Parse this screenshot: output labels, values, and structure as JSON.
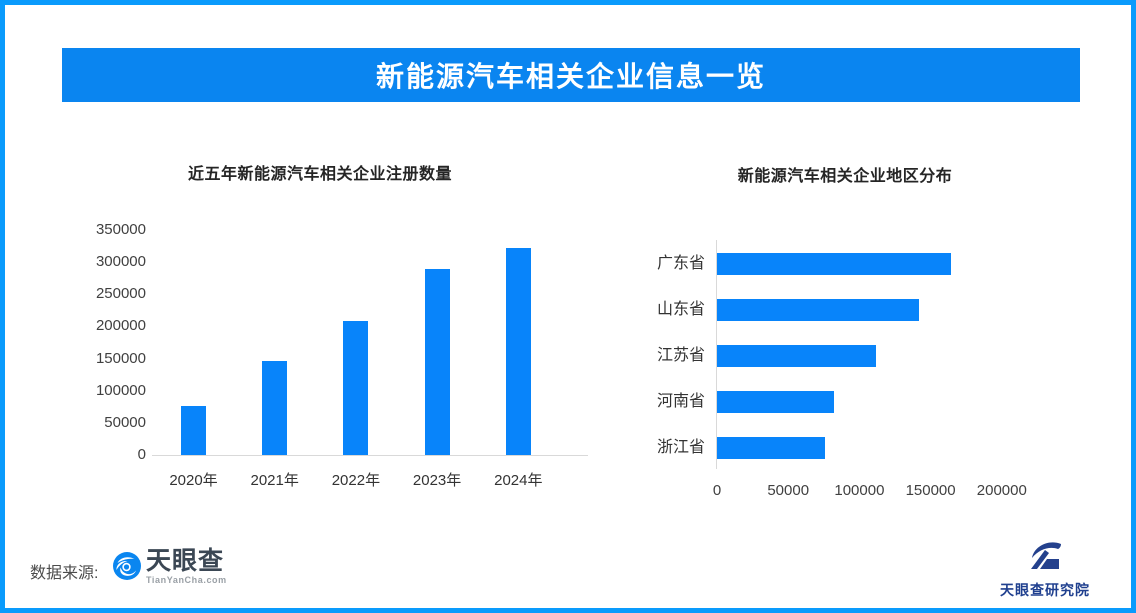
{
  "banner": {
    "title": "新能源汽车相关企业信息一览"
  },
  "footer": {
    "source_label": "数据来源:",
    "logo_text": "天眼查",
    "logo_subtext": "TianYanCha.com",
    "institute_text": "天眼查研究院"
  },
  "colors": {
    "frame_border": "#0a9bfc",
    "banner_bg": "#0a85f0",
    "banner_text": "#ffffff",
    "bar_fill": "#0884fa",
    "axis_line": "#d9d9d9",
    "tick_text": "#404040",
    "title_text": "#252525",
    "institute_navy": "#20408f"
  },
  "chart_data": [
    {
      "type": "bar",
      "orientation": "vertical",
      "title": "近五年新能源汽车相关企业注册数量",
      "categories": [
        "2020年",
        "2021年",
        "2022年",
        "2023年",
        "2024年"
      ],
      "values": [
        77000,
        146500,
        208500,
        289000,
        322500
      ],
      "xlabel": "",
      "ylabel": "",
      "ylim": [
        0,
        350000
      ],
      "yticks": [
        0,
        50000,
        100000,
        150000,
        200000,
        250000,
        300000,
        350000
      ],
      "grid": false,
      "legend": false
    },
    {
      "type": "bar",
      "orientation": "horizontal",
      "title": "新能源汽车相关企业地区分布",
      "categories": [
        "广东省",
        "山东省",
        "江苏省",
        "河南省",
        "浙江省"
      ],
      "values": [
        164000,
        142000,
        112000,
        82500,
        75500
      ],
      "xlabel": "",
      "ylabel": "",
      "xlim": [
        0,
        250000
      ],
      "xticks": [
        0,
        50000,
        100000,
        150000,
        200000
      ],
      "grid": false,
      "legend": false
    }
  ]
}
